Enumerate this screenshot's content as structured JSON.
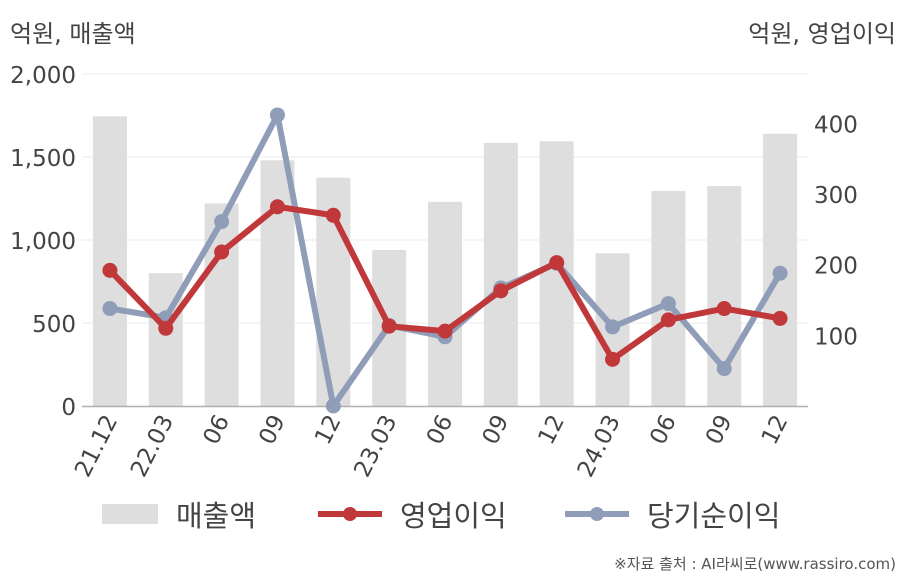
{
  "header": {
    "left_unit": "억원, 매출액",
    "right_unit": "억원, 영업이익"
  },
  "source": "※자료 출처 : AI라씨로(www.rassiro.com)",
  "colors": {
    "bar": "#dedede",
    "op_income": "#c0383a",
    "net_income": "#8f9db8",
    "axis": "#b0b0b0",
    "grid": "#ebebeb",
    "text": "#444444"
  },
  "chart_data": {
    "type": "bar+line",
    "categories": [
      "21.12",
      "22.03",
      "06",
      "09",
      "12",
      "23.03",
      "06",
      "09",
      "12",
      "24.03",
      "06",
      "09",
      "12"
    ],
    "y_left": {
      "label": "억원, 매출액",
      "lim": [
        0,
        2000
      ],
      "ticks": [
        0,
        500,
        1000,
        1500,
        2000
      ],
      "tick_labels": [
        "0",
        "500",
        "1,000",
        "1,500",
        "2,000"
      ]
    },
    "y_right": {
      "label": "억원, 영업이익",
      "lim": [
        0,
        470
      ],
      "ticks": [
        100,
        200,
        300,
        400
      ],
      "tick_labels": [
        "100",
        "200",
        "300",
        "400"
      ]
    },
    "grid": true,
    "legend_position": "bottom",
    "series": [
      {
        "name": "매출액",
        "type": "bar",
        "axis": "left",
        "values": [
          1745,
          800,
          1220,
          1480,
          1375,
          940,
          1230,
          1585,
          1595,
          920,
          1295,
          1325,
          1640
        ]
      },
      {
        "name": "영업이익",
        "type": "line",
        "axis": "right",
        "values": [
          192,
          110,
          218,
          282,
          270,
          113,
          106,
          163,
          203,
          66,
          122,
          138,
          124
        ]
      },
      {
        "name": "당기순이익",
        "type": "line",
        "axis": "right",
        "values": [
          138,
          125,
          261,
          412,
          0,
          114,
          98,
          167,
          202,
          112,
          145,
          53,
          188
        ]
      }
    ]
  }
}
